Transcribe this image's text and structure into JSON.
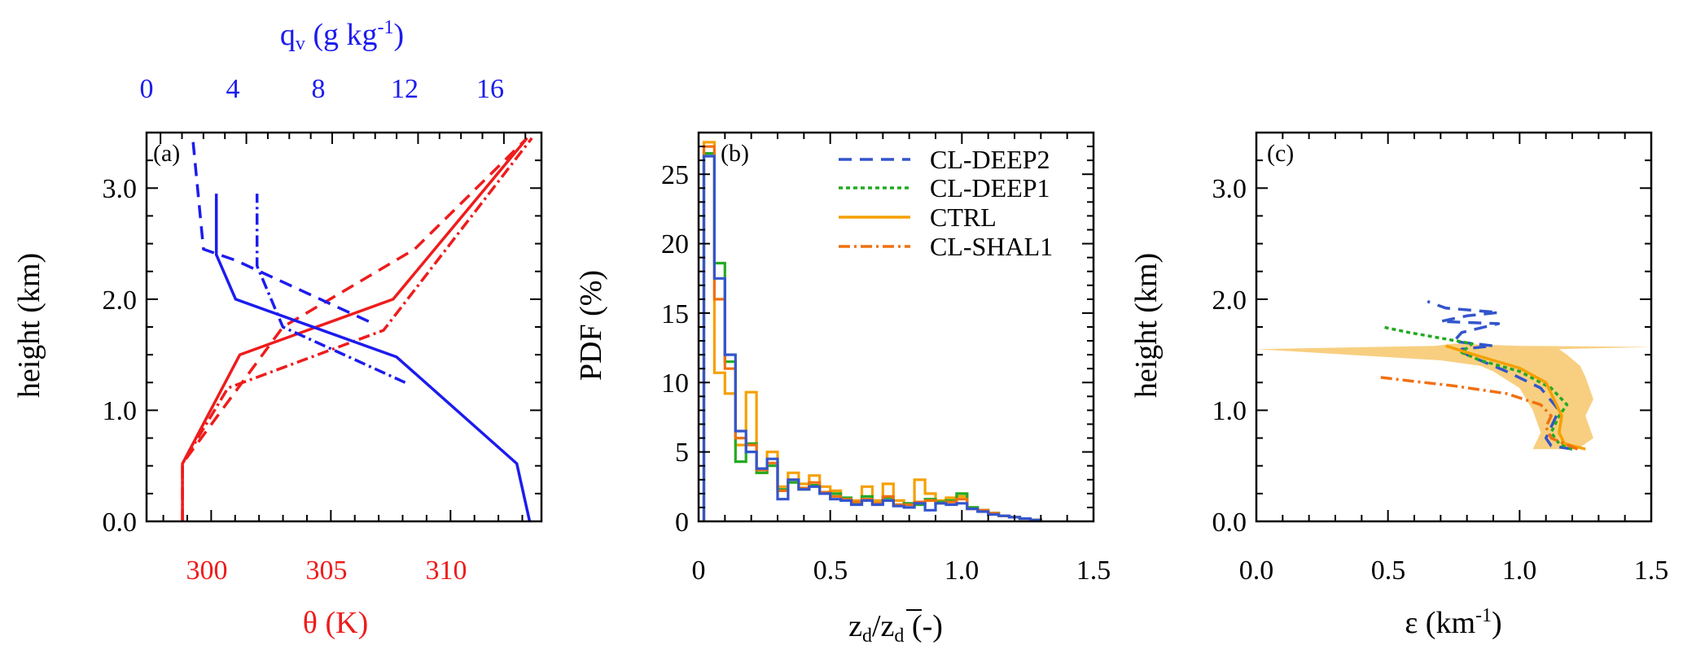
{
  "colors": {
    "red": "#ee1c1c",
    "blue": "#1c1cee",
    "deep2": "#3355cc",
    "deep1": "#22aa22",
    "ctrl": "#f5a000",
    "shal1": "#f07010",
    "band": "#f8cf80"
  },
  "chart_data": [
    {
      "id": "a",
      "type": "line",
      "panel_label": "(a)",
      "ylabel": "height (km)",
      "ylim": [
        0.0,
        3.5
      ],
      "yticks": [
        0.0,
        1.0,
        2.0,
        3.0
      ],
      "ytick_labels": [
        "0.0",
        "1.0",
        "2.0",
        "3.0"
      ],
      "xlabel_bottom": "θ (K)",
      "xlim_bottom": [
        297.3,
        313.8
      ],
      "xticks_bottom": [
        300,
        305,
        310
      ],
      "xtick_labels_bottom": [
        "300",
        "305",
        "310"
      ],
      "xlabel_top_main": "q",
      "xlabel_top_sub": "v",
      "xlabel_top_units": " (g kg",
      "xlabel_top_exp": "-1",
      "xlabel_top_close": ")",
      "xlim_top": [
        -0.65,
        17.75
      ],
      "xticks_top": [
        0,
        4,
        8,
        12,
        16
      ],
      "xtick_labels_top": [
        "0",
        "4",
        "8",
        "12",
        "16"
      ],
      "series": [
        {
          "name": "theta solid",
          "axis": "bottom",
          "color_key": "red",
          "dash": "solid",
          "x": [
            298.8,
            298.8,
            301.2,
            307.6,
            313.2
          ],
          "y": [
            0.0,
            0.52,
            1.5,
            2.0,
            3.45
          ]
        },
        {
          "name": "theta dashed",
          "axis": "bottom",
          "color_key": "red",
          "dash": "dash",
          "x": [
            298.8,
            298.8,
            303.0,
            308.5,
            313.2
          ],
          "y": [
            0.0,
            0.52,
            1.75,
            2.45,
            3.45
          ]
        },
        {
          "name": "theta dashdot",
          "axis": "bottom",
          "color_key": "red",
          "dash": "dashdot",
          "x": [
            298.8,
            298.8,
            300.7,
            307.2,
            313.4
          ],
          "y": [
            0.0,
            0.52,
            1.2,
            1.72,
            3.45
          ]
        },
        {
          "name": "qv solid",
          "axis": "top",
          "color_key": "blue",
          "dash": "solid",
          "x": [
            17.2,
            16.6,
            11.0,
            3.5,
            2.6,
            2.6
          ],
          "y": [
            0.0,
            0.52,
            1.48,
            2.0,
            2.4,
            2.95
          ]
        },
        {
          "name": "qv dashed",
          "axis": "top",
          "color_key": "blue",
          "dash": "dash",
          "x": [
            9.7,
            3.5,
            2.0,
            1.5
          ],
          "y": [
            1.8,
            2.35,
            2.45,
            3.45
          ]
        },
        {
          "name": "qv dashdot",
          "axis": "top",
          "color_key": "blue",
          "dash": "dashdot",
          "x": [
            11.4,
            5.7,
            4.5,
            4.5
          ],
          "y": [
            1.25,
            1.75,
            2.3,
            2.95
          ]
        }
      ]
    },
    {
      "id": "b",
      "type": "line",
      "panel_label": "(b)",
      "ylabel": "PDF (%)",
      "ylim": [
        0,
        28
      ],
      "yticks": [
        0,
        5,
        10,
        15,
        20,
        25
      ],
      "ytick_labels": [
        "0",
        "5",
        "10",
        "15",
        "20",
        "25"
      ],
      "xlabel_main": "z",
      "xlabel_sub": "d",
      "xlabel_slash": "/",
      "xlabel_main2": "z",
      "xlabel_sub2": "d",
      "xlabel_units": " (-)",
      "xlim": [
        0,
        1.5
      ],
      "xticks": [
        0,
        0.5,
        1.0,
        1.5
      ],
      "xtick_labels": [
        "0",
        "0.5",
        "1.0",
        "1.5"
      ],
      "legend": [
        "CL-DEEP2",
        "CL-DEEP1",
        "CTRL",
        "CL-SHAL1"
      ],
      "series": [
        {
          "name": "CTRL",
          "color_key": "ctrl",
          "dash": "solid",
          "x": [
            0.02,
            0.06,
            0.1,
            0.14,
            0.18,
            0.22,
            0.26,
            0.3,
            0.34,
            0.38,
            0.42,
            0.46,
            0.5,
            0.54,
            0.58,
            0.62,
            0.66,
            0.7,
            0.74,
            0.78,
            0.82,
            0.86,
            0.9,
            0.94,
            0.98,
            1.02,
            1.06,
            1.1,
            1.14,
            1.18,
            1.22,
            1.26,
            1.3
          ],
          "y": [
            27.3,
            10.7,
            9.2,
            5.5,
            9.3,
            3.5,
            5.0,
            2.5,
            3.5,
            2.7,
            3.3,
            2.5,
            2.2,
            1.5,
            1.5,
            2.5,
            1.5,
            2.7,
            1.5,
            1.2,
            3.0,
            2.0,
            1.5,
            1.7,
            1.8,
            1.0,
            0.8,
            0.5,
            0.4,
            0.3,
            0.2,
            0.1,
            0.0
          ]
        },
        {
          "name": "CL-DEEP1",
          "color_key": "deep1",
          "dash": "solid",
          "x": [
            0.02,
            0.06,
            0.1,
            0.14,
            0.18,
            0.22,
            0.26,
            0.3,
            0.34,
            0.38,
            0.42,
            0.46,
            0.5,
            0.54,
            0.58,
            0.62,
            0.66,
            0.7,
            0.74,
            0.78,
            0.82,
            0.86,
            0.9,
            0.94,
            0.98,
            1.02,
            1.06,
            1.1,
            1.14,
            1.18,
            1.22,
            1.26,
            1.3
          ],
          "y": [
            26.5,
            18.6,
            11.5,
            4.3,
            5.6,
            3.5,
            4.0,
            2.3,
            2.8,
            2.3,
            2.6,
            2.0,
            2.0,
            1.7,
            1.3,
            1.8,
            1.3,
            1.7,
            1.2,
            1.3,
            1.2,
            1.6,
            1.4,
            1.5,
            2.0,
            1.0,
            0.8,
            0.6,
            0.4,
            0.3,
            0.2,
            0.1,
            0.0
          ]
        },
        {
          "name": "CL-SHAL1",
          "color_key": "shal1",
          "dash": "dashdot",
          "x": [
            0.02,
            0.06,
            0.1,
            0.14,
            0.18,
            0.22,
            0.26,
            0.3,
            0.34,
            0.38,
            0.42,
            0.46,
            0.5,
            0.54,
            0.58,
            0.62,
            0.66,
            0.7,
            0.74,
            0.78,
            0.82,
            0.86,
            0.9,
            0.94,
            0.98,
            1.02,
            1.06,
            1.1,
            1.14,
            1.18,
            1.22,
            1.26,
            1.3
          ],
          "y": [
            27.0,
            16.0,
            11.0,
            6.0,
            5.5,
            3.7,
            4.2,
            2.2,
            3.0,
            2.4,
            2.8,
            2.1,
            1.8,
            1.6,
            1.4,
            1.6,
            1.3,
            1.8,
            1.2,
            1.2,
            1.4,
            1.5,
            1.3,
            1.4,
            1.6,
            0.9,
            0.8,
            0.6,
            0.4,
            0.3,
            0.2,
            0.1,
            0.0
          ]
        },
        {
          "name": "CL-DEEP2",
          "color_key": "deep2",
          "dash": "solid",
          "x": [
            0.02,
            0.06,
            0.1,
            0.14,
            0.18,
            0.22,
            0.26,
            0.3,
            0.34,
            0.38,
            0.42,
            0.46,
            0.5,
            0.54,
            0.58,
            0.62,
            0.66,
            0.7,
            0.74,
            0.78,
            0.82,
            0.86,
            0.9,
            0.94,
            0.98,
            1.02,
            1.06,
            1.1,
            1.14,
            1.18,
            1.22,
            1.26,
            1.3
          ],
          "y": [
            26.3,
            17.5,
            12.0,
            6.5,
            5.0,
            3.8,
            4.5,
            1.6,
            3.0,
            2.3,
            2.5,
            2.0,
            1.6,
            1.5,
            1.2,
            1.5,
            1.2,
            1.5,
            1.1,
            1.0,
            1.3,
            0.8,
            1.3,
            1.2,
            1.3,
            0.9,
            0.7,
            0.5,
            0.4,
            0.3,
            0.2,
            0.1,
            0.0
          ]
        }
      ]
    },
    {
      "id": "c",
      "type": "line",
      "panel_label": "(c)",
      "ylabel": "height (km)",
      "ylim": [
        0.0,
        3.5
      ],
      "yticks": [
        0.0,
        1.0,
        2.0,
        3.0
      ],
      "ytick_labels": [
        "0.0",
        "1.0",
        "2.0",
        "3.0"
      ],
      "xlabel_main": "ε (km",
      "xlabel_exp": "-1",
      "xlabel_close": ")",
      "xlim": [
        0.0,
        1.5
      ],
      "xticks": [
        0.0,
        0.5,
        1.0,
        1.5
      ],
      "xtick_labels": [
        "0.0",
        "0.5",
        "1.0",
        "1.5"
      ],
      "band": {
        "name": "CTRL spread",
        "color_key": "band",
        "upper_x": [
          1.22,
          1.28,
          1.25,
          1.28,
          1.25,
          1.23,
          1.18,
          1.15,
          1.5,
          1.0,
          0.75
        ],
        "upper_y": [
          0.65,
          0.75,
          0.95,
          1.1,
          1.3,
          1.4,
          1.5,
          1.55,
          1.57,
          1.58,
          1.6
        ],
        "lower_x": [
          1.05,
          1.08,
          1.05,
          1.0,
          0.9,
          0.85,
          0.7,
          0.0,
          0.68,
          0.75
        ],
        "lower_y": [
          0.65,
          0.8,
          1.0,
          1.2,
          1.35,
          1.4,
          1.45,
          1.55,
          1.58,
          1.6
        ]
      },
      "series": [
        {
          "name": "CL-DEEP2",
          "color_key": "deep2",
          "dash": "dash",
          "x": [
            1.2,
            1.12,
            1.1,
            1.12,
            1.15,
            1.08,
            0.95,
            0.85,
            0.8,
            0.78,
            0.9,
            0.75,
            0.78,
            0.92,
            0.7,
            0.8,
            0.92,
            0.72,
            0.65
          ],
          "y": [
            0.65,
            0.68,
            0.75,
            0.85,
            1.0,
            1.2,
            1.35,
            1.45,
            1.5,
            1.55,
            1.58,
            1.62,
            1.7,
            1.78,
            1.8,
            1.85,
            1.88,
            1.92,
            1.98
          ]
        },
        {
          "name": "CL-DEEP1",
          "color_key": "deep1",
          "dash": "dot",
          "x": [
            1.2,
            1.15,
            1.12,
            1.15,
            1.18,
            1.12,
            1.0,
            0.85,
            0.78,
            0.82,
            0.7,
            0.58,
            0.48
          ],
          "y": [
            0.65,
            0.7,
            0.8,
            0.95,
            1.05,
            1.2,
            1.35,
            1.45,
            1.52,
            1.6,
            1.65,
            1.7,
            1.75
          ]
        },
        {
          "name": "CTRL",
          "color_key": "ctrl",
          "dash": "solid",
          "x": [
            1.25,
            1.17,
            1.15,
            1.16,
            1.13,
            1.1,
            1.0,
            0.9,
            0.8,
            0.72
          ],
          "y": [
            0.65,
            0.7,
            0.8,
            0.95,
            1.1,
            1.25,
            1.38,
            1.45,
            1.52,
            1.58
          ]
        },
        {
          "name": "CL-SHAL1",
          "color_key": "shal1",
          "dash": "dashdot",
          "x": [
            1.22,
            1.12,
            1.1,
            1.12,
            1.08,
            0.95,
            0.75,
            0.6,
            0.46
          ],
          "y": [
            0.65,
            0.75,
            0.85,
            0.95,
            1.05,
            1.15,
            1.22,
            1.26,
            1.3
          ]
        }
      ]
    }
  ]
}
